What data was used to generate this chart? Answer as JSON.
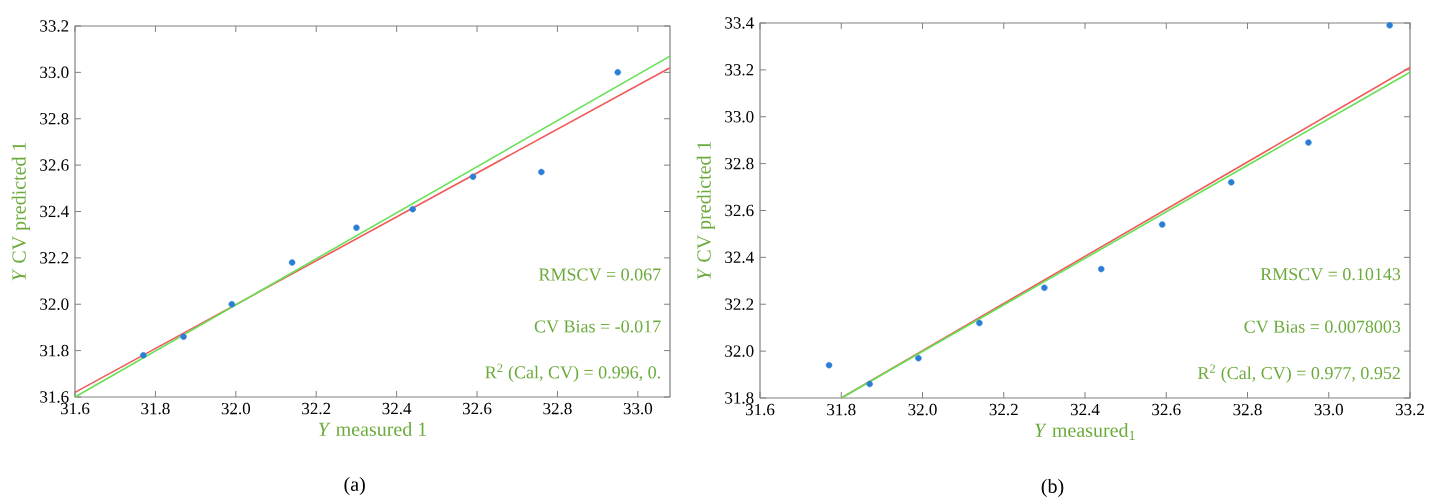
{
  "chart_data": [
    {
      "type": "scatter",
      "xlabel": "*Y* measured 1",
      "ylabel": "*Y* CV predicted 1",
      "xlim": [
        31.6,
        33.08
      ],
      "ylim": [
        31.6,
        33.2
      ],
      "xticks": [
        {
          "value": 31.6,
          "label": "31.6"
        },
        {
          "value": 31.8,
          "label": "31.8"
        },
        {
          "value": 32.0,
          "label": "32.0"
        },
        {
          "value": 32.2,
          "label": "32.2"
        },
        {
          "value": 32.4,
          "label": "32.4"
        },
        {
          "value": 32.6,
          "label": "32.6"
        },
        {
          "value": 32.8,
          "label": "32.8"
        },
        {
          "value": 33.0,
          "label": "33.0"
        }
      ],
      "yticks": [
        {
          "value": 31.6,
          "label": "31.6"
        },
        {
          "value": 31.8,
          "label": "31.8"
        },
        {
          "value": 32.0,
          "label": "32.0"
        },
        {
          "value": 32.2,
          "label": "32.2"
        },
        {
          "value": 32.4,
          "label": "32.4"
        },
        {
          "value": 32.6,
          "label": "32.6"
        },
        {
          "value": 32.8,
          "label": "32.8"
        },
        {
          "value": 33.0,
          "label": "33.0"
        },
        {
          "value": 33.2,
          "label": "33.2"
        }
      ],
      "series": [
        {
          "marker": "circle",
          "color": "#2a7fd4",
          "x": [
            31.77,
            31.87,
            31.99,
            32.14,
            32.3,
            32.44,
            32.59,
            32.76,
            32.95
          ],
          "values": [
            31.78,
            31.86,
            32.0,
            32.18,
            32.33,
            32.41,
            32.55,
            32.57,
            33.0
          ]
        },
        {
          "type": "line",
          "color": "#f05a5a",
          "x": [
            31.6,
            33.08
          ],
          "values": [
            31.62,
            33.02
          ]
        },
        {
          "type": "line",
          "color": "#66e055",
          "x": [
            31.6,
            33.08
          ],
          "values": [
            31.6,
            33.07
          ]
        }
      ],
      "annotations": [
        "RMSCV = 0.067",
        "CV Bias = -0.017",
        "R$^{2}$ (Cal, CV) = 0.996, 0.",
        "(a)"
      ]
    },
    {
      "type": "scatter",
      "xlabel": "*Y* measured$_{1}$",
      "ylabel": "*Y* CV predicted 1",
      "xlim": [
        31.6,
        33.2
      ],
      "ylim": [
        31.8,
        33.4
      ],
      "xticks": [
        {
          "value": 31.6,
          "label": "31.6"
        },
        {
          "value": 31.8,
          "label": "31.8"
        },
        {
          "value": 32.0,
          "label": "32.0"
        },
        {
          "value": 32.2,
          "label": "32.2"
        },
        {
          "value": 32.4,
          "label": "32.4"
        },
        {
          "value": 32.6,
          "label": "32.6"
        },
        {
          "value": 32.8,
          "label": "32.8"
        },
        {
          "value": 33.0,
          "label": "33.0"
        },
        {
          "value": 33.2,
          "label": "33.2"
        }
      ],
      "yticks": [
        {
          "value": 31.8,
          "label": "31.8"
        },
        {
          "value": 32.0,
          "label": "32.0"
        },
        {
          "value": 32.2,
          "label": "32.2"
        },
        {
          "value": 32.4,
          "label": "32.4"
        },
        {
          "value": 32.6,
          "label": "32.6"
        },
        {
          "value": 32.8,
          "label": "32.8"
        },
        {
          "value": 33.0,
          "label": "33.0"
        },
        {
          "value": 33.2,
          "label": "33.2"
        },
        {
          "value": 33.4,
          "label": "33.4"
        }
      ],
      "series": [
        {
          "marker": "circle",
          "color": "#2a7fd4",
          "x": [
            31.77,
            31.87,
            31.99,
            32.14,
            32.3,
            32.44,
            32.59,
            32.76,
            32.95,
            33.15
          ],
          "values": [
            31.94,
            31.86,
            31.97,
            32.12,
            32.27,
            32.35,
            32.54,
            32.72,
            32.89,
            33.39
          ]
        },
        {
          "type": "line",
          "color": "#f05a5a",
          "x": [
            31.8,
            33.2
          ],
          "values": [
            31.8,
            33.21
          ]
        },
        {
          "type": "line",
          "color": "#66e055",
          "x": [
            31.8,
            33.2
          ],
          "values": [
            31.8,
            33.19
          ]
        }
      ],
      "annotations": [
        "RMSCV = 0.10143",
        "CV Bias = 0.0078003",
        "R$^{2}$ (Cal, CV) = 0.977, 0.952",
        "(b)"
      ]
    }
  ]
}
